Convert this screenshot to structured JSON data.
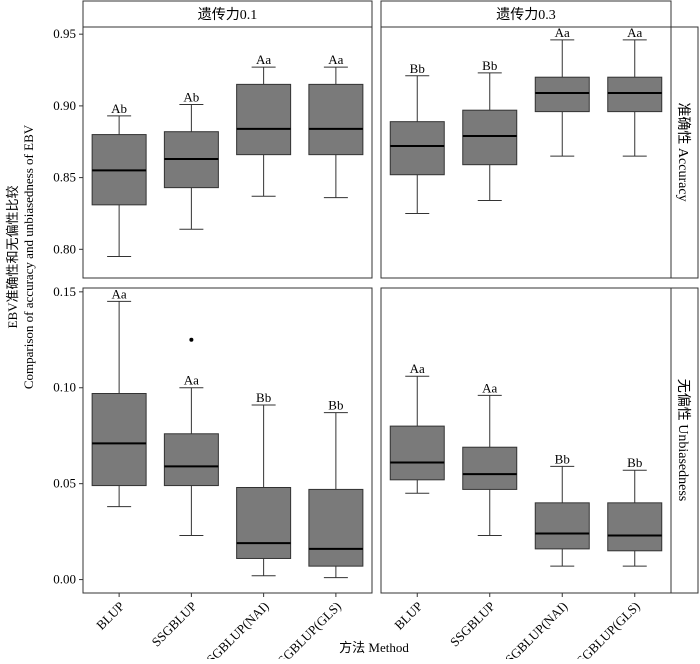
{
  "chart_data": {
    "type": "boxplot",
    "x_title": "方法 Method",
    "y_title_line1": "EBV准确性和无偏性比较",
    "y_title_line2": "Comparison of accuracy and unbiasedness of EBV",
    "categories": [
      "BLUP",
      "SSGBLUP",
      "MF-SSGBLUP(NAI)",
      "MF-SSGBLUP(GLS)"
    ],
    "columns": [
      "遗传力0.1",
      "遗传力0.3"
    ],
    "rows": [
      {
        "label": "准确性 Accuracy",
        "ylim": [
          0.78,
          0.955
        ],
        "yticks": [
          "0.80",
          "0.85",
          "0.90",
          "0.95"
        ],
        "yticks_values": [
          0.8,
          0.85,
          0.9,
          0.95
        ]
      },
      {
        "label": "无偏性 Unbiasedness",
        "ylim": [
          -0.007,
          0.152
        ],
        "yticks": [
          "0.00",
          "0.05",
          "0.10",
          "0.15"
        ],
        "yticks_values": [
          0.0,
          0.05,
          0.1,
          0.15
        ]
      }
    ],
    "panels": [
      {
        "row": 0,
        "col": 0,
        "boxes": [
          {
            "min": 0.795,
            "q1": 0.831,
            "median": 0.855,
            "q3": 0.88,
            "max": 0.893,
            "label": "Ab",
            "outliers": []
          },
          {
            "min": 0.814,
            "q1": 0.843,
            "median": 0.863,
            "q3": 0.882,
            "max": 0.901,
            "label": "Ab",
            "outliers": []
          },
          {
            "min": 0.837,
            "q1": 0.866,
            "median": 0.884,
            "q3": 0.915,
            "max": 0.927,
            "label": "Aa",
            "outliers": []
          },
          {
            "min": 0.836,
            "q1": 0.866,
            "median": 0.884,
            "q3": 0.915,
            "max": 0.927,
            "label": "Aa",
            "outliers": []
          }
        ]
      },
      {
        "row": 0,
        "col": 1,
        "boxes": [
          {
            "min": 0.825,
            "q1": 0.852,
            "median": 0.872,
            "q3": 0.889,
            "max": 0.921,
            "label": "Bb",
            "outliers": []
          },
          {
            "min": 0.834,
            "q1": 0.859,
            "median": 0.879,
            "q3": 0.897,
            "max": 0.923,
            "label": "Bb",
            "outliers": []
          },
          {
            "min": 0.865,
            "q1": 0.896,
            "median": 0.909,
            "q3": 0.92,
            "max": 0.946,
            "label": "Aa",
            "outliers": []
          },
          {
            "min": 0.865,
            "q1": 0.896,
            "median": 0.909,
            "q3": 0.92,
            "max": 0.946,
            "label": "Aa",
            "outliers": []
          }
        ]
      },
      {
        "row": 1,
        "col": 0,
        "boxes": [
          {
            "min": 0.038,
            "q1": 0.049,
            "median": 0.071,
            "q3": 0.097,
            "max": 0.145,
            "label": "Aa",
            "outliers": []
          },
          {
            "min": 0.023,
            "q1": 0.049,
            "median": 0.059,
            "q3": 0.076,
            "max": 0.1,
            "label": "Aa",
            "outliers": [
              0.125
            ]
          },
          {
            "min": 0.002,
            "q1": 0.011,
            "median": 0.019,
            "q3": 0.048,
            "max": 0.091,
            "label": "Bb",
            "outliers": []
          },
          {
            "min": 0.001,
            "q1": 0.007,
            "median": 0.016,
            "q3": 0.047,
            "max": 0.087,
            "label": "Bb",
            "outliers": []
          }
        ]
      },
      {
        "row": 1,
        "col": 1,
        "boxes": [
          {
            "min": 0.045,
            "q1": 0.052,
            "median": 0.061,
            "q3": 0.08,
            "max": 0.106,
            "label": "Aa",
            "outliers": []
          },
          {
            "min": 0.023,
            "q1": 0.047,
            "median": 0.055,
            "q3": 0.069,
            "max": 0.096,
            "label": "Aa",
            "outliers": []
          },
          {
            "min": 0.007,
            "q1": 0.016,
            "median": 0.024,
            "q3": 0.04,
            "max": 0.059,
            "label": "Bb",
            "outliers": []
          },
          {
            "min": 0.007,
            "q1": 0.015,
            "median": 0.023,
            "q3": 0.04,
            "max": 0.057,
            "label": "Bb",
            "outliers": []
          }
        ]
      }
    ],
    "colors": {
      "box_fill": "#7a7a7a",
      "box_stroke": "#333333",
      "median": "#000000",
      "whisker": "#333333",
      "panel_border": "#333333",
      "strip_fill": "#ffffff"
    }
  }
}
